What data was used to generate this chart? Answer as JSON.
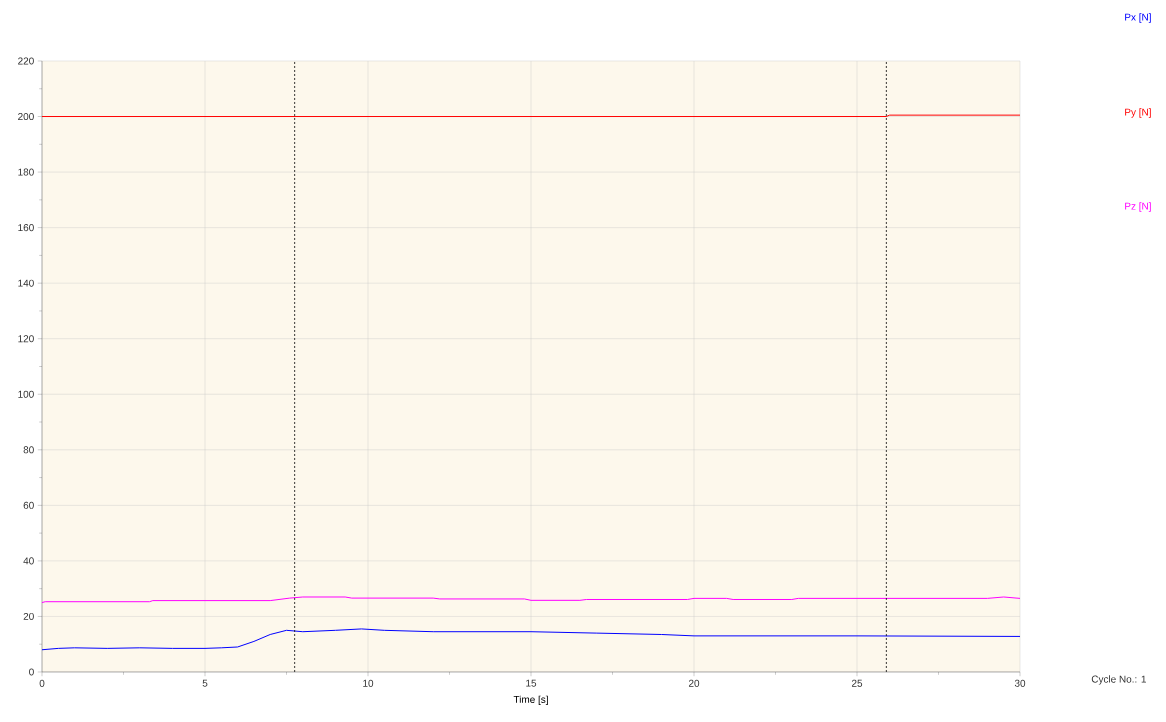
{
  "chart_data": {
    "type": "line",
    "xlabel": "Time [s]",
    "xlim": [
      0,
      30
    ],
    "xticks": [
      0,
      5,
      10,
      15,
      20,
      25,
      30
    ],
    "ylim": [
      0,
      220
    ],
    "yticks": [
      0,
      20,
      40,
      60,
      80,
      100,
      120,
      140,
      160,
      180,
      200,
      220
    ],
    "grid": true,
    "legend": "right",
    "marker": "none",
    "line_style": "solid",
    "annotations": [
      "Cycle No.: 1"
    ],
    "ref_lines": [
      {
        "axis": "x",
        "value": 7.75,
        "color": "#000000",
        "line_style": "dashed"
      },
      {
        "axis": "x",
        "value": 25.9,
        "color": "#000000",
        "line_style": "dashed"
      }
    ],
    "series": [
      {
        "name": "Px [N]",
        "color": "#0000ff",
        "x": [
          0,
          0.5,
          1,
          2,
          3,
          4,
          5,
          5.5,
          6,
          6.5,
          7,
          7.5,
          8,
          9,
          9.8,
          10.5,
          12,
          15,
          17,
          19,
          20,
          25,
          30
        ],
        "values": [
          8,
          8.5,
          8.7,
          8.5,
          8.7,
          8.5,
          8.5,
          8.7,
          9,
          11,
          13.5,
          15,
          14.5,
          15,
          15.5,
          15,
          14.5,
          14.5,
          14,
          13.5,
          13,
          13,
          12.8
        ]
      },
      {
        "name": "Py [N]",
        "color": "#ff0000",
        "x": [
          0,
          25.9,
          26,
          30
        ],
        "values": [
          200,
          200,
          200.5,
          200.5
        ]
      },
      {
        "name": "Pz [N]",
        "color": "#ff00ff",
        "x": [
          0,
          0.1,
          3.3,
          3.4,
          7,
          7.6,
          8,
          9.3,
          9.5,
          12,
          12.2,
          14.8,
          15,
          16.5,
          16.7,
          19.8,
          20,
          21,
          21.2,
          23,
          23.2,
          29,
          29.5,
          30
        ],
        "values": [
          25,
          25.3,
          25.3,
          25.7,
          25.7,
          26.6,
          27,
          27,
          26.6,
          26.6,
          26.3,
          26.3,
          25.8,
          25.8,
          26.1,
          26.1,
          26.5,
          26.5,
          26.1,
          26.1,
          26.5,
          26.5,
          27,
          26.5
        ]
      }
    ]
  }
}
